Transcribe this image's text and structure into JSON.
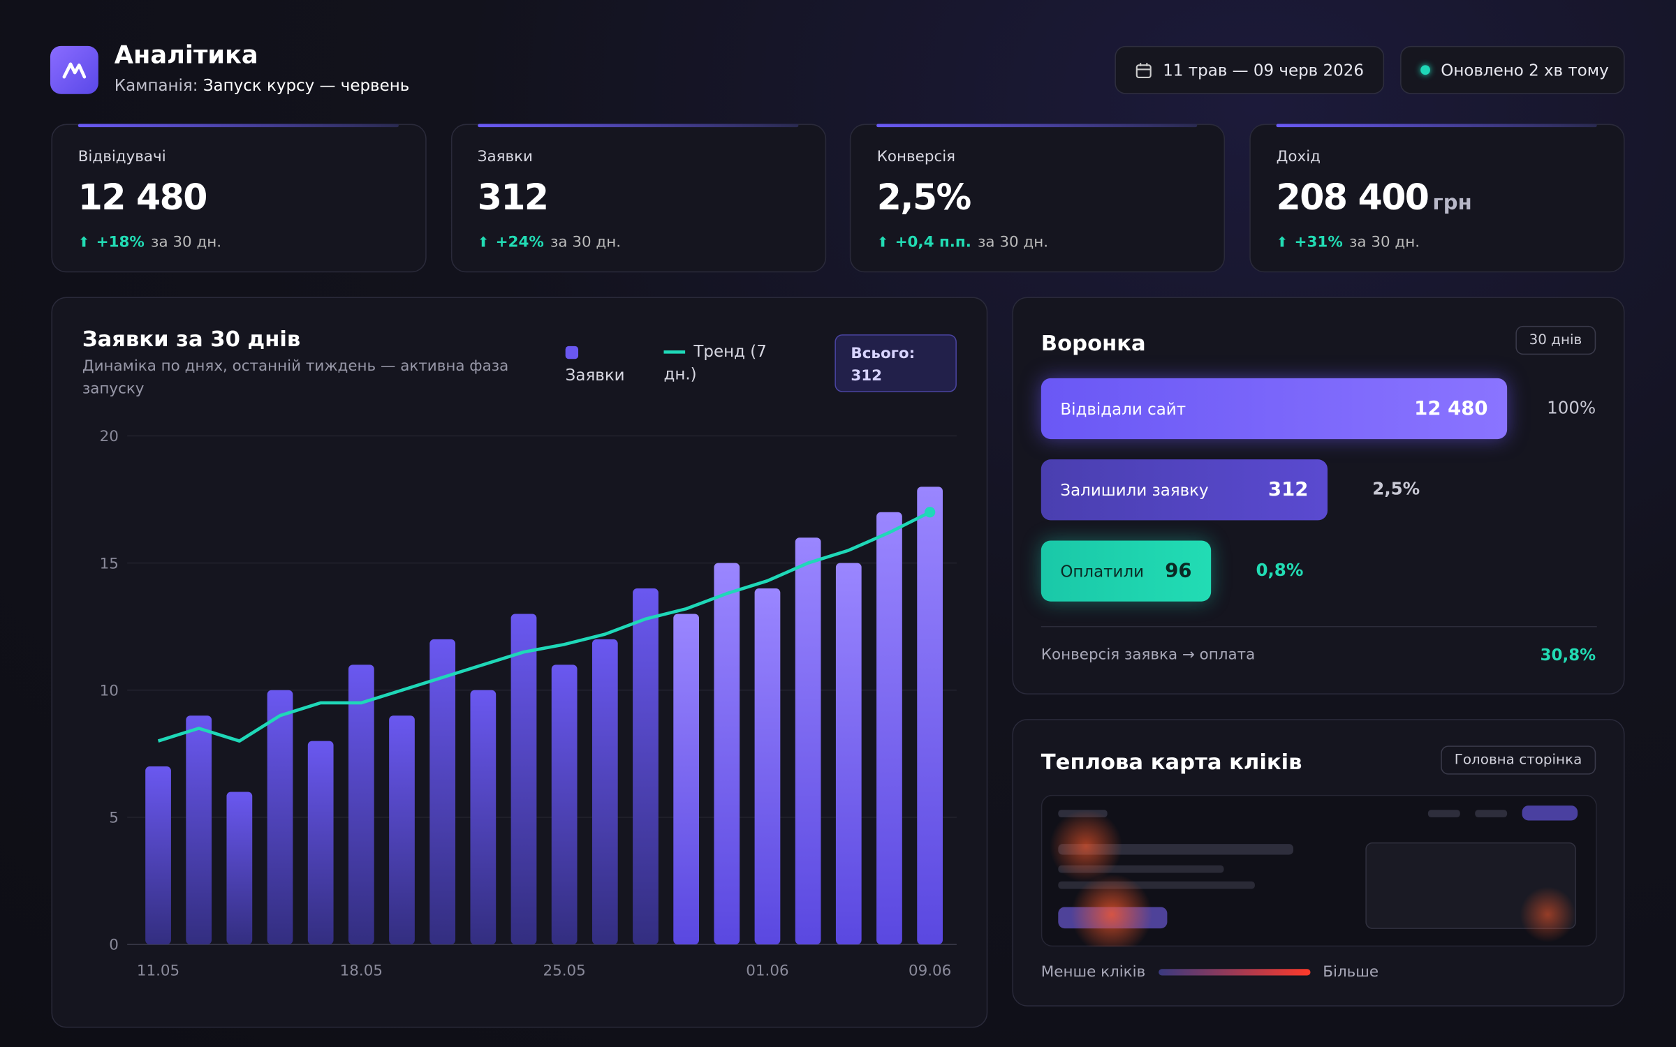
{
  "header": {
    "title": "Аналітика",
    "campaign_label": "Кампанія:",
    "campaign": "Запуск курсу — червень",
    "date_range": "11 трав — 09 черв 2026",
    "updated": "Оновлено 2 хв тому"
  },
  "kpis": [
    {
      "label": "Відвідувачі",
      "value": "12 480",
      "delta": "+18%",
      "period": "за 30 дн."
    },
    {
      "label": "Заявки",
      "value": "312",
      "delta": "+24%",
      "period": "за 30 дн."
    },
    {
      "label": "Конверсія",
      "value": "2,5%",
      "delta": "+0,4 п.п.",
      "period": "за 30 дн."
    },
    {
      "label": "Дохід",
      "value": "208 400",
      "unit": "грн",
      "delta": "+31%",
      "period": "за 30 дн."
    }
  ],
  "chart_data": {
    "type": "bar",
    "title": "Заявки за 30 днів",
    "subtitle": "Динаміка по днях, останній тиждень — активна фаза запуску",
    "total_label": "Всього:",
    "total_value": "312",
    "categories": [
      "11.05",
      null,
      null,
      null,
      null,
      "18.05",
      null,
      null,
      null,
      null,
      "25.05",
      null,
      null,
      null,
      null,
      "01.06",
      null,
      null,
      null,
      "09.06"
    ],
    "series": [
      {
        "name": "Заявки",
        "color": "#6a58f0",
        "values": [
          7,
          9,
          6,
          10,
          8,
          11,
          9,
          12,
          10,
          13,
          11,
          12,
          14,
          13,
          15,
          14,
          16,
          15,
          17,
          18
        ]
      },
      {
        "name": "Тренд (7 дн.)",
        "type": "line",
        "color": "#1fd8b8",
        "values": [
          8,
          8.5,
          8,
          9,
          9.5,
          9.5,
          10,
          10.5,
          11,
          11.5,
          11.8,
          12.2,
          12.8,
          13.2,
          13.8,
          14.3,
          15,
          15.5,
          16.2,
          17
        ]
      }
    ],
    "ylim": [
      0,
      20
    ],
    "yticks": [
      0,
      5,
      10,
      15,
      20
    ],
    "grid": true
  },
  "funnel": {
    "title": "Воронка",
    "badge": "30 днів",
    "stages": [
      {
        "label": "Відвідали сайт",
        "value": "12 480",
        "percent": "100%"
      },
      {
        "label": "Залишили заявку",
        "value": "312",
        "percent": "2,5%"
      },
      {
        "label": "Оплатили",
        "value": "96",
        "percent": "0,8%"
      }
    ],
    "footer_label": "Конверсія заявка → оплата",
    "footer_value": "30,8%"
  },
  "heatmap": {
    "title": "Теплова карта кліків",
    "badge": "Головна сторінка",
    "legend_low": "Менше кліків",
    "legend_high": "Більше"
  }
}
